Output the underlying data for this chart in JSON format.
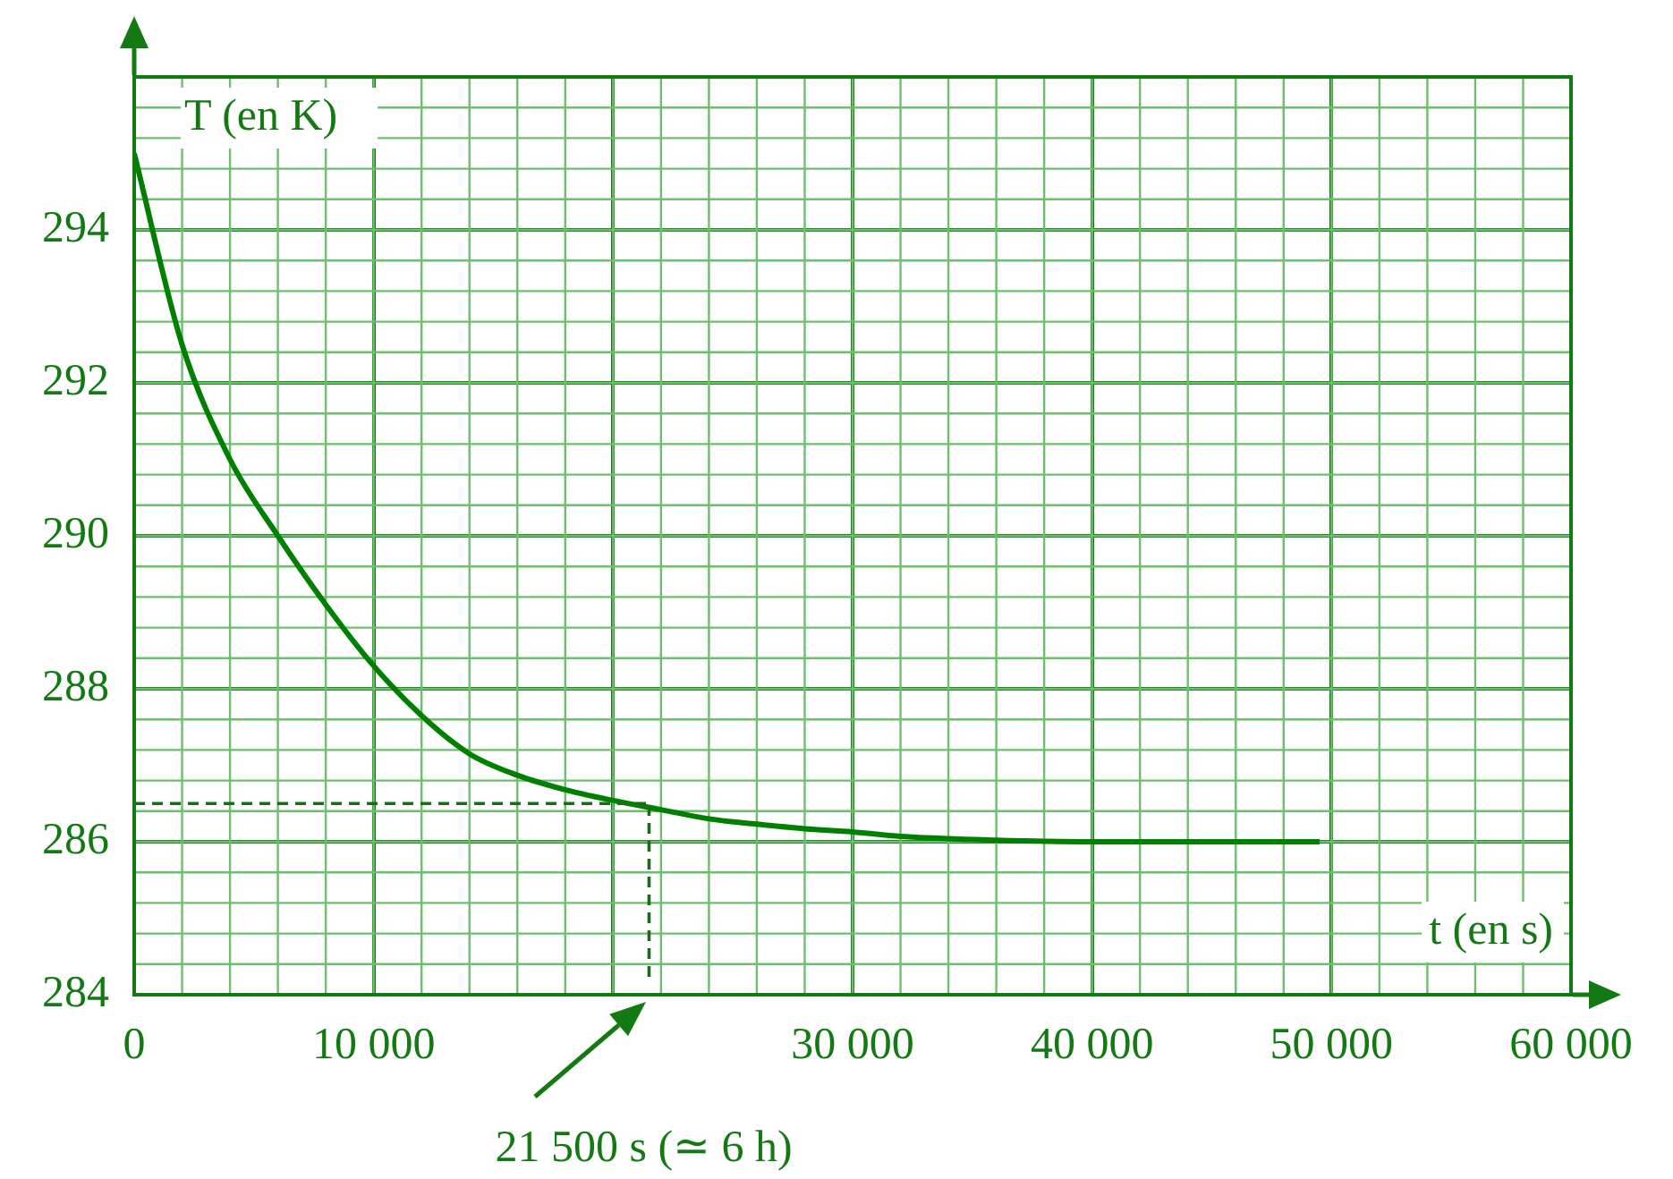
{
  "chart_data": {
    "type": "line",
    "xlabel": "t (en s)",
    "ylabel": "T (en K)",
    "x": [
      0,
      2000,
      4000,
      6000,
      8000,
      10000,
      12000,
      14000,
      16000,
      18000,
      20000,
      22000,
      24000,
      26000,
      28000,
      30000,
      32000,
      36000,
      40000,
      45000,
      49500
    ],
    "series": [
      {
        "color": "#008000",
        "values": [
          295.0,
          292.5,
          291.0,
          290.0,
          289.1,
          288.3,
          287.65,
          287.15,
          286.87,
          286.68,
          286.54,
          286.42,
          286.3,
          286.23,
          286.17,
          286.13,
          286.07,
          286.02,
          286.0,
          286.0,
          286.0
        ]
      }
    ],
    "xlim": [
      0,
      60000
    ],
    "ylim": [
      284,
      296
    ],
    "xticks": [
      0,
      {
        "value": 10000,
        "label": "10 000"
      },
      {
        "value": 20000,
        "label": null
      },
      {
        "value": 30000,
        "label": "30 000"
      },
      {
        "value": 40000,
        "label": "40 000"
      },
      {
        "value": 50000,
        "label": "50 000"
      },
      {
        "value": 60000,
        "label": "60 000"
      }
    ],
    "yticks": [
      284,
      286,
      288,
      290,
      292,
      294
    ],
    "grid": true,
    "marker": "none",
    "line_style": "solid",
    "ref_lines": [
      {
        "axis": "x",
        "value": 21500,
        "color": "#1a6b1a",
        "line_style": "dashed",
        "label": "21 500 s (≃ 6 h)"
      },
      {
        "axis": "y",
        "value": 286.5,
        "color": "#1a6b1a",
        "line_style": "dashed"
      }
    ]
  }
}
